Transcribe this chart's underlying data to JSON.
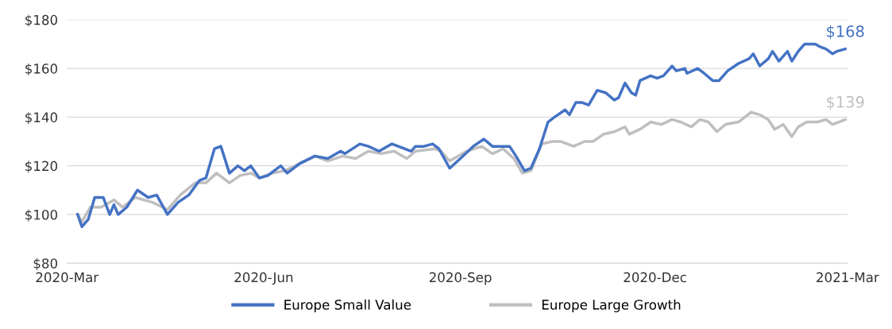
{
  "chart_data": {
    "type": "line",
    "xlim": [
      "2020-03-01",
      "2021-03-01"
    ],
    "xticks": [
      {
        "value": "2020-03-01",
        "label": "2020-Mar"
      },
      {
        "value": "2020-06-01",
        "label": "2020-Jun"
      },
      {
        "value": "2020-09-01",
        "label": "2020-Sep"
      },
      {
        "value": "2020-12-01",
        "label": "2020-Dec"
      },
      {
        "value": "2021-03-01",
        "label": "2021-Mar"
      }
    ],
    "ylim": [
      80,
      180
    ],
    "yticks": [
      {
        "value": 80,
        "label": "$80"
      },
      {
        "value": 100,
        "label": "$100"
      },
      {
        "value": 120,
        "label": "$120"
      },
      {
        "value": 140,
        "label": "$140"
      },
      {
        "value": 160,
        "label": "$160"
      },
      {
        "value": 180,
        "label": "$180"
      }
    ],
    "grid": "y",
    "legend": "bottom",
    "marker": "none",
    "line_style": "solid",
    "series": [
      {
        "name": "Europe Small Value",
        "color": "#4472c4",
        "x": [
          "2020-03-06",
          "2020-03-08",
          "2020-03-11",
          "2020-03-14",
          "2020-03-18",
          "2020-03-21",
          "2020-03-23",
          "2020-03-25",
          "2020-03-29",
          "2020-04-03",
          "2020-04-08",
          "2020-04-12",
          "2020-04-17",
          "2020-04-22",
          "2020-04-27",
          "2020-05-02",
          "2020-05-05",
          "2020-05-09",
          "2020-05-12",
          "2020-05-16",
          "2020-05-20",
          "2020-05-23",
          "2020-05-26",
          "2020-05-30",
          "2020-06-03",
          "2020-06-09",
          "2020-06-12",
          "2020-06-18",
          "2020-06-25",
          "2020-07-01",
          "2020-07-07",
          "2020-07-09",
          "2020-07-16",
          "2020-07-20",
          "2020-07-25",
          "2020-07-31",
          "2020-08-03",
          "2020-08-09",
          "2020-08-11",
          "2020-08-15",
          "2020-08-19",
          "2020-08-22",
          "2020-08-27",
          "2020-09-01",
          "2020-09-07",
          "2020-09-12",
          "2020-09-16",
          "2020-09-21",
          "2020-09-24",
          "2020-09-27",
          "2020-10-01",
          "2020-10-04",
          "2020-10-08",
          "2020-10-12",
          "2020-10-15",
          "2020-10-20",
          "2020-10-22",
          "2020-10-25",
          "2020-10-28",
          "2020-10-31",
          "2020-11-04",
          "2020-11-08",
          "2020-11-12",
          "2020-11-14",
          "2020-11-17",
          "2020-11-20",
          "2020-11-22",
          "2020-11-24",
          "2020-11-29",
          "2020-12-02",
          "2020-12-05",
          "2020-12-09",
          "2020-12-11",
          "2020-12-15",
          "2020-12-16",
          "2020-12-21",
          "2020-12-24",
          "2020-12-28",
          "2020-12-31",
          "2021-01-04",
          "2021-01-09",
          "2021-01-14",
          "2021-01-16",
          "2021-01-19",
          "2021-01-23",
          "2021-01-25",
          "2021-01-28",
          "2021-02-01",
          "2021-02-03",
          "2021-02-06",
          "2021-02-09",
          "2021-02-14",
          "2021-02-16",
          "2021-02-19",
          "2021-02-22",
          "2021-02-24",
          "2021-02-28"
        ],
        "values": [
          100,
          95,
          98,
          107,
          107,
          100,
          104,
          100,
          103,
          110,
          107,
          108,
          100,
          105,
          108,
          114,
          115,
          127,
          128,
          117,
          120,
          118,
          120,
          115,
          116,
          120,
          117,
          121,
          124,
          123,
          126,
          125,
          129,
          128,
          126,
          129,
          128,
          126,
          128,
          128,
          129,
          127,
          119,
          123,
          128,
          131,
          128,
          128,
          128,
          124,
          118,
          119,
          127,
          138,
          140,
          143,
          141,
          146,
          146,
          145,
          151,
          150,
          147,
          148,
          154,
          150,
          149,
          155,
          157,
          156,
          157,
          161,
          159,
          160,
          158,
          160,
          158,
          155,
          155,
          159,
          162,
          164,
          166,
          161,
          164,
          167,
          163,
          167,
          163,
          167,
          170,
          170,
          169,
          168,
          166,
          167,
          168
        ]
      },
      {
        "name": "Europe Large Growth",
        "color": "#bfbfbf",
        "x": [
          "2020-03-06",
          "2020-03-08",
          "2020-03-12",
          "2020-03-17",
          "2020-03-23",
          "2020-03-27",
          "2020-04-02",
          "2020-04-10",
          "2020-04-17",
          "2020-04-23",
          "2020-04-30",
          "2020-05-05",
          "2020-05-10",
          "2020-05-16",
          "2020-05-21",
          "2020-05-26",
          "2020-05-30",
          "2020-06-05",
          "2020-06-11",
          "2020-06-18",
          "2020-06-25",
          "2020-07-01",
          "2020-07-08",
          "2020-07-14",
          "2020-07-20",
          "2020-07-26",
          "2020-08-01",
          "2020-08-07",
          "2020-08-11",
          "2020-08-20",
          "2020-08-23",
          "2020-08-27",
          "2020-09-04",
          "2020-09-11",
          "2020-09-16",
          "2020-09-21",
          "2020-09-26",
          "2020-09-30",
          "2020-10-04",
          "2020-10-09",
          "2020-10-14",
          "2020-10-18",
          "2020-10-24",
          "2020-10-29",
          "2020-11-02",
          "2020-11-07",
          "2020-11-12",
          "2020-11-17",
          "2020-11-19",
          "2020-11-24",
          "2020-11-29",
          "2020-12-04",
          "2020-12-09",
          "2020-12-13",
          "2020-12-18",
          "2020-12-22",
          "2020-12-26",
          "2020-12-30",
          "2021-01-03",
          "2021-01-09",
          "2021-01-15",
          "2021-01-19",
          "2021-01-23",
          "2021-01-26",
          "2021-01-30",
          "2021-02-03",
          "2021-02-06",
          "2021-02-10",
          "2021-02-15",
          "2021-02-19",
          "2021-02-22",
          "2021-02-25",
          "2021-02-28"
        ],
        "values": [
          100,
          97,
          103,
          103,
          106,
          103,
          107,
          105,
          102,
          108,
          113,
          113,
          117,
          113,
          116,
          117,
          115,
          117,
          118,
          121,
          124,
          122,
          124,
          123,
          126,
          125,
          126,
          123,
          126,
          127,
          126,
          122,
          126,
          128,
          125,
          127,
          123,
          117,
          118,
          129,
          130,
          130,
          128,
          130,
          130,
          133,
          134,
          136,
          133,
          135,
          138,
          137,
          139,
          138,
          136,
          139,
          138,
          134,
          137,
          138,
          142,
          141,
          139,
          135,
          137,
          132,
          136,
          138,
          138,
          139,
          137,
          138,
          139
        ]
      }
    ],
    "annotations": [
      {
        "text": "$168",
        "x": "2021-02-28",
        "y": 168
      },
      {
        "text": "$139",
        "x": "2021-02-28",
        "y": 139
      }
    ]
  }
}
